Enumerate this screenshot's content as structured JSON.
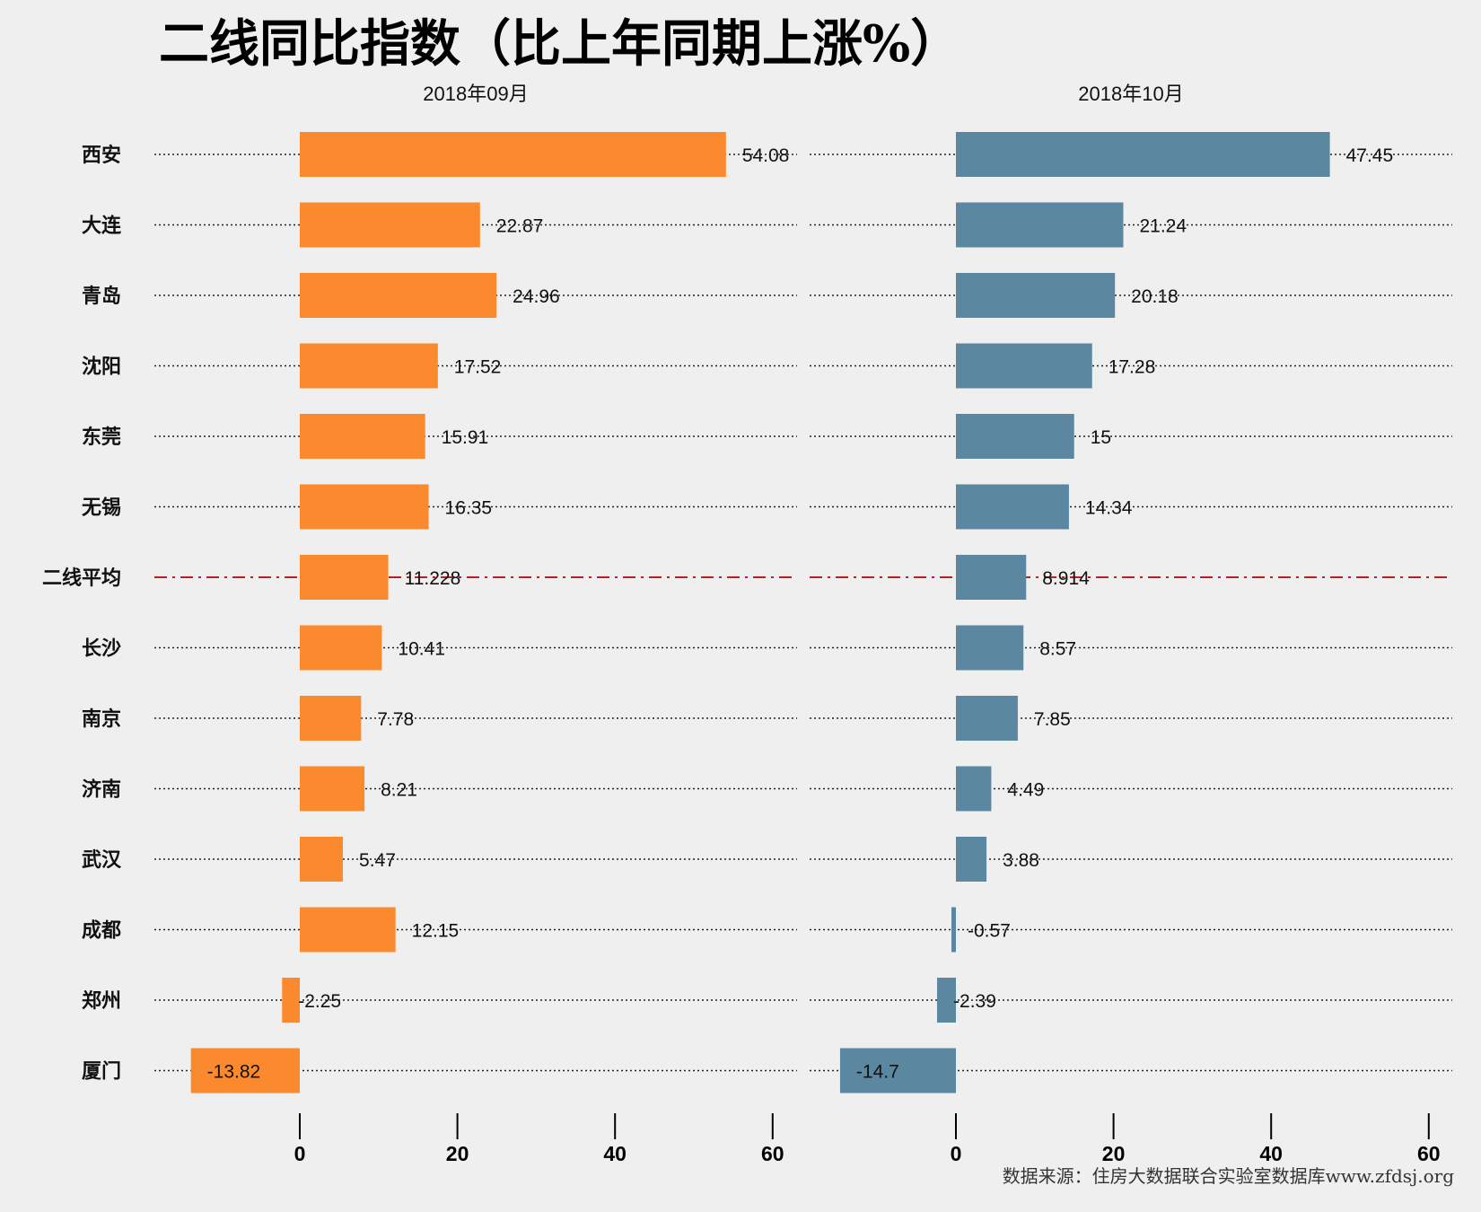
{
  "chart_data": {
    "type": "bar",
    "orientation": "horizontal",
    "title": "二线同比指数（比上年同期上涨%）",
    "categories": [
      "西安",
      "大连",
      "青岛",
      "沈阳",
      "东莞",
      "无锡",
      "二线平均",
      "长沙",
      "南京",
      "济南",
      "武汉",
      "成都",
      "郑州",
      "厦门"
    ],
    "highlight_category": "二线平均",
    "panels": [
      {
        "subtitle": "2018年09月",
        "color": "#fb8a2e",
        "values": [
          54.08,
          22.87,
          24.96,
          17.52,
          15.91,
          16.35,
          11.228,
          10.41,
          7.78,
          8.21,
          5.47,
          12.15,
          -2.25,
          -13.82
        ],
        "xlim": [
          -18,
          62
        ],
        "ticks": [
          0,
          20,
          40,
          60
        ]
      },
      {
        "subtitle": "2018年10月",
        "color": "#5b87a1",
        "values": [
          47.45,
          21.24,
          20.18,
          17.28,
          15,
          14.34,
          8.914,
          8.57,
          7.85,
          4.49,
          3.88,
          -0.57,
          -2.39,
          -14.7
        ],
        "xlim": [
          -18,
          62
        ],
        "ticks": [
          0,
          20,
          40,
          60
        ]
      }
    ],
    "average_line_color": "#b22222",
    "grid": "dotted row guides"
  },
  "source": "数据来源：住房大数据联合实验室数据库www.zfdsj.org"
}
